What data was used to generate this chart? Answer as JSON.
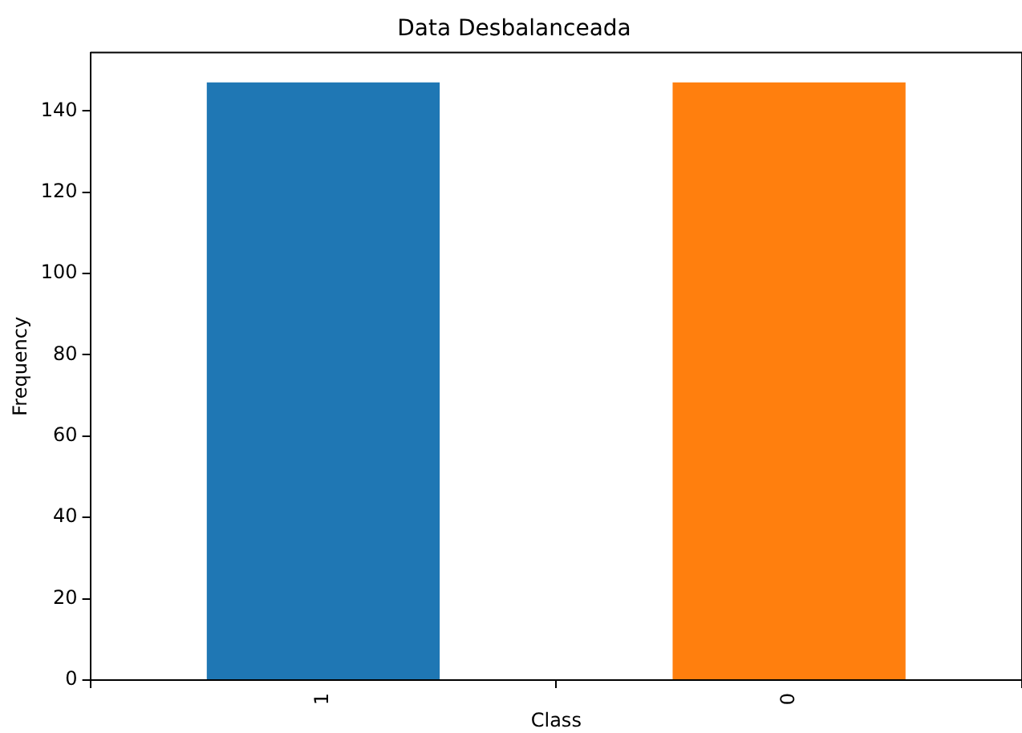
{
  "chart_data": {
    "type": "bar",
    "title": "Data Desbalanceada",
    "xlabel": "Class",
    "ylabel": "Frequency",
    "categories": [
      "1",
      "0"
    ],
    "values": [
      147,
      147
    ],
    "colors": [
      "#1f77b4",
      "#ff7f0e"
    ],
    "ylim": [
      0,
      154.35
    ],
    "yticks": [
      0,
      20,
      40,
      60,
      80,
      100,
      120,
      140
    ],
    "grid": false
  }
}
